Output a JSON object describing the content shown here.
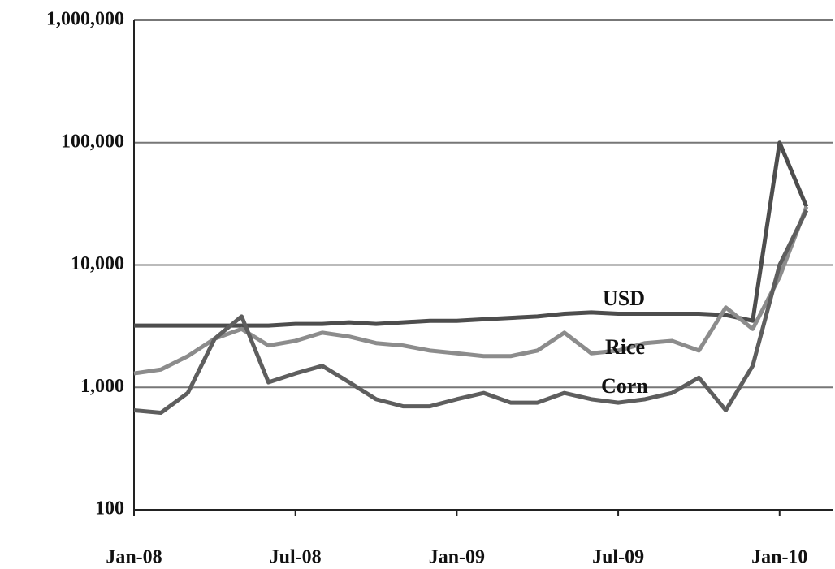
{
  "chart_data": {
    "type": "line",
    "x": [
      "2008-01",
      "2008-02",
      "2008-03",
      "2008-04",
      "2008-05",
      "2008-06",
      "2008-07",
      "2008-08",
      "2008-09",
      "2008-10",
      "2008-11",
      "2008-12",
      "2009-01",
      "2009-02",
      "2009-03",
      "2009-04",
      "2009-05",
      "2009-06",
      "2009-07",
      "2009-08",
      "2009-09",
      "2009-10",
      "2009-11",
      "2009-12",
      "2010-01",
      "2010-02"
    ],
    "series": [
      {
        "name": "USD",
        "color": "#4d4d4d",
        "values": [
          3200,
          3200,
          3200,
          3200,
          3200,
          3200,
          3300,
          3300,
          3400,
          3300,
          3400,
          3500,
          3500,
          3600,
          3700,
          3800,
          4000,
          4100,
          4000,
          4000,
          4000,
          4000,
          3900,
          3500,
          100000,
          30000
        ]
      },
      {
        "name": "Rice",
        "color": "#8c8c8c",
        "values": [
          1300,
          1400,
          1800,
          2500,
          3000,
          2200,
          2400,
          2800,
          2600,
          2300,
          2200,
          2000,
          1900,
          1800,
          1800,
          2000,
          2800,
          1900,
          2000,
          2300,
          2400,
          2000,
          4500,
          3000,
          8000,
          30000
        ]
      },
      {
        "name": "Corn",
        "color": "#5e5e5e",
        "values": [
          650,
          620,
          900,
          2500,
          3800,
          1100,
          1300,
          1500,
          1100,
          800,
          700,
          700,
          800,
          900,
          750,
          750,
          900,
          800,
          750,
          800,
          900,
          1200,
          650,
          1500,
          10000,
          28000
        ]
      }
    ],
    "annotations": [
      "USD",
      "Rice",
      "Corn"
    ],
    "xlim": [
      "2008-01",
      "2010-03"
    ],
    "xticks": [
      {
        "value": "2008-01",
        "label": "Jan-08"
      },
      {
        "value": "2008-07",
        "label": "Jul-08"
      },
      {
        "value": "2009-01",
        "label": "Jan-09"
      },
      {
        "value": "2009-07",
        "label": "Jul-09"
      },
      {
        "value": "2010-01",
        "label": "Jan-10"
      }
    ],
    "ylim": [
      100,
      1000000
    ],
    "yticks": [
      {
        "value": 100,
        "label": "100"
      },
      {
        "value": 1000,
        "label": "1,000"
      },
      {
        "value": 10000,
        "label": "10,000"
      },
      {
        "value": 100000,
        "label": "100,000"
      },
      {
        "value": 1000000,
        "label": "1,000,000"
      }
    ],
    "log_y": true,
    "grid": true
  }
}
